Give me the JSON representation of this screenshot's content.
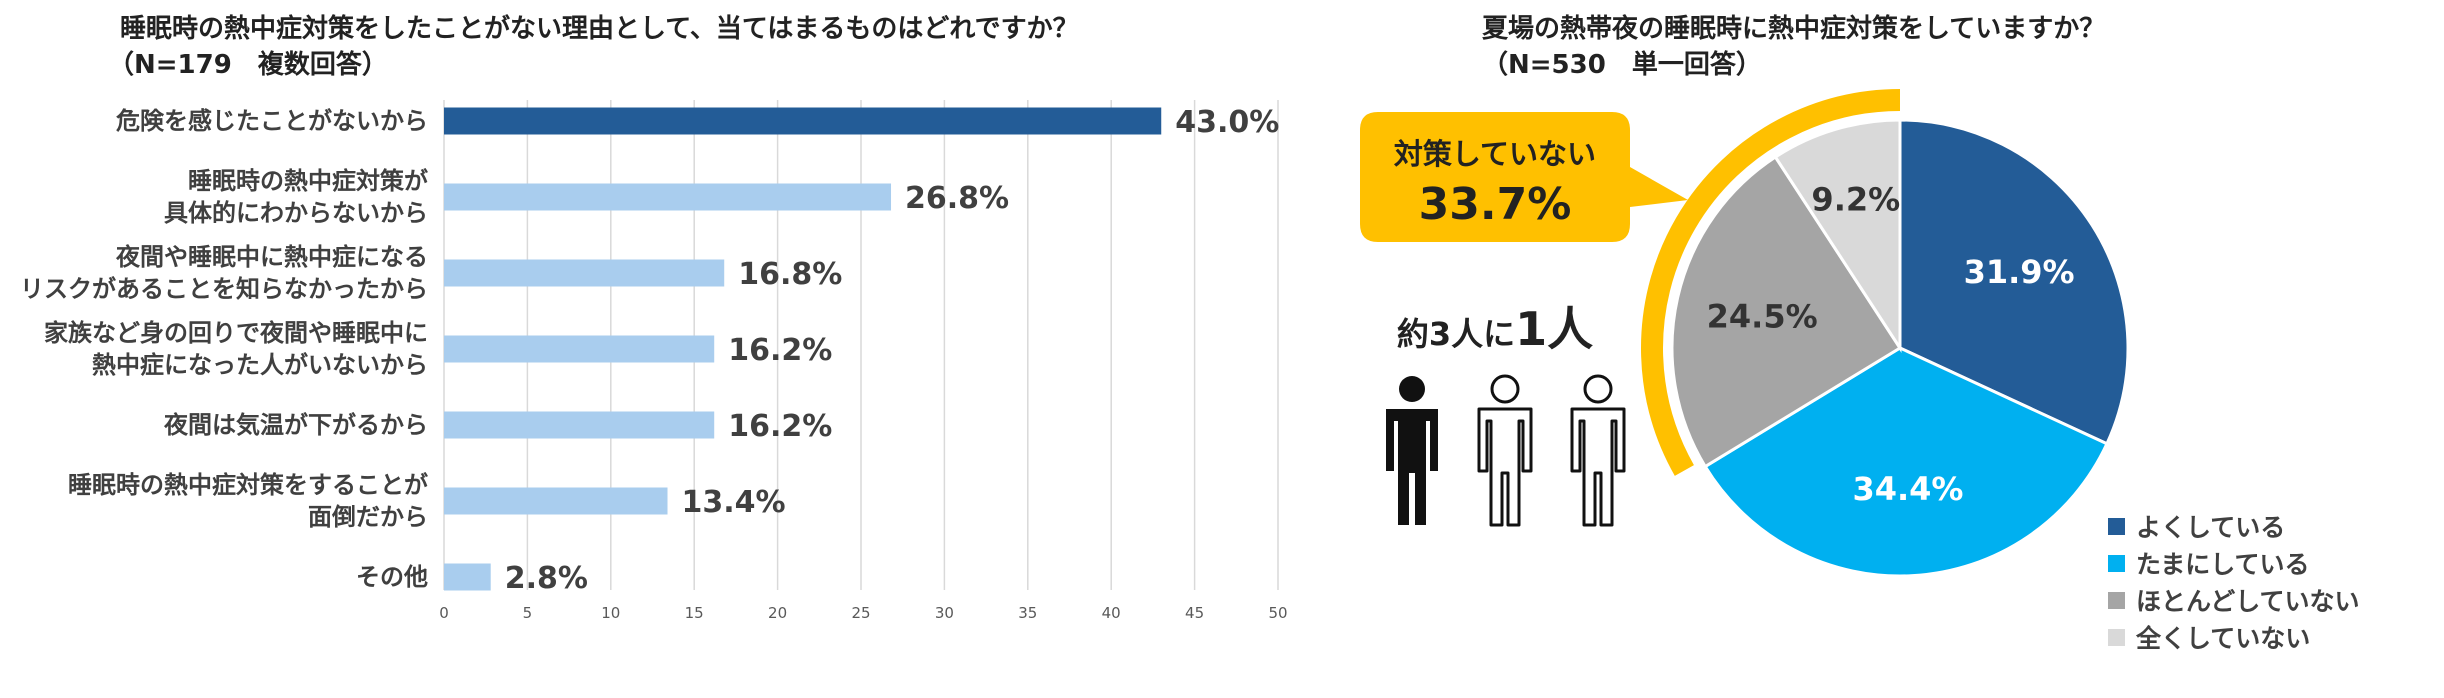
{
  "chart_data": [
    {
      "type": "bar",
      "orientation": "horizontal",
      "title": "睡眠時の熱中症対策をしたことがない理由として、当てはまるものはどれですか？",
      "subtitle": "（N=179　複数回答）",
      "categories": [
        [
          "危険を感じたことがないから"
        ],
        [
          "睡眠時の熱中症対策が",
          "具体的にわからないから"
        ],
        [
          "夜間や睡眠中に熱中症になる",
          "リスクがあることを知らなかったから"
        ],
        [
          "家族など身の回りで夜間や睡眠中に",
          "熱中症になった人がいないから"
        ],
        [
          "夜間は気温が下がるから"
        ],
        [
          "睡眠時の熱中症対策をすることが",
          "面倒だから"
        ],
        [
          "その他"
        ]
      ],
      "values": [
        43.0,
        26.8,
        16.8,
        16.2,
        16.2,
        13.4,
        2.8
      ],
      "data_labels": [
        "43.0%",
        "26.8%",
        "16.8%",
        "16.2%",
        "16.2%",
        "13.4%",
        "2.8%"
      ],
      "highlight_color": "#235c97",
      "bar_color": "#a9cdee",
      "xlim": [
        0,
        50
      ],
      "xticks": [
        "0",
        "5",
        "10",
        "15",
        "20",
        "25",
        "30",
        "35",
        "40",
        "45",
        "50"
      ],
      "grid": true
    },
    {
      "type": "pie",
      "title": "夏場の熱帯夜の睡眠時に熱中症対策をしていますか？",
      "subtitle": "（N=530　単一回答）",
      "slices": [
        {
          "label": "よくしている",
          "value": 31.9,
          "value_label": "31.9%",
          "color": "#235c97"
        },
        {
          "label": "たまにしている",
          "value": 34.4,
          "value_label": "34.4%",
          "color": "#00b0f0"
        },
        {
          "label": "ほとんどしていない",
          "value": 24.5,
          "value_label": "24.5%",
          "color": "#a5a5a5"
        },
        {
          "label": "全くしていない",
          "value": 9.2,
          "value_label": "9.2%",
          "color": "#d9d9d9"
        }
      ],
      "legend_position": "bottom-right",
      "highlight_color": "#ffc000",
      "callout": {
        "label": "対策していない",
        "value": "33.7%"
      },
      "annotation": {
        "prefix": "約3人に",
        "emphasis": "1人"
      },
      "person_icons": [
        "person-icon-filled",
        "person-icon-outline",
        "person-icon-outline"
      ]
    }
  ]
}
